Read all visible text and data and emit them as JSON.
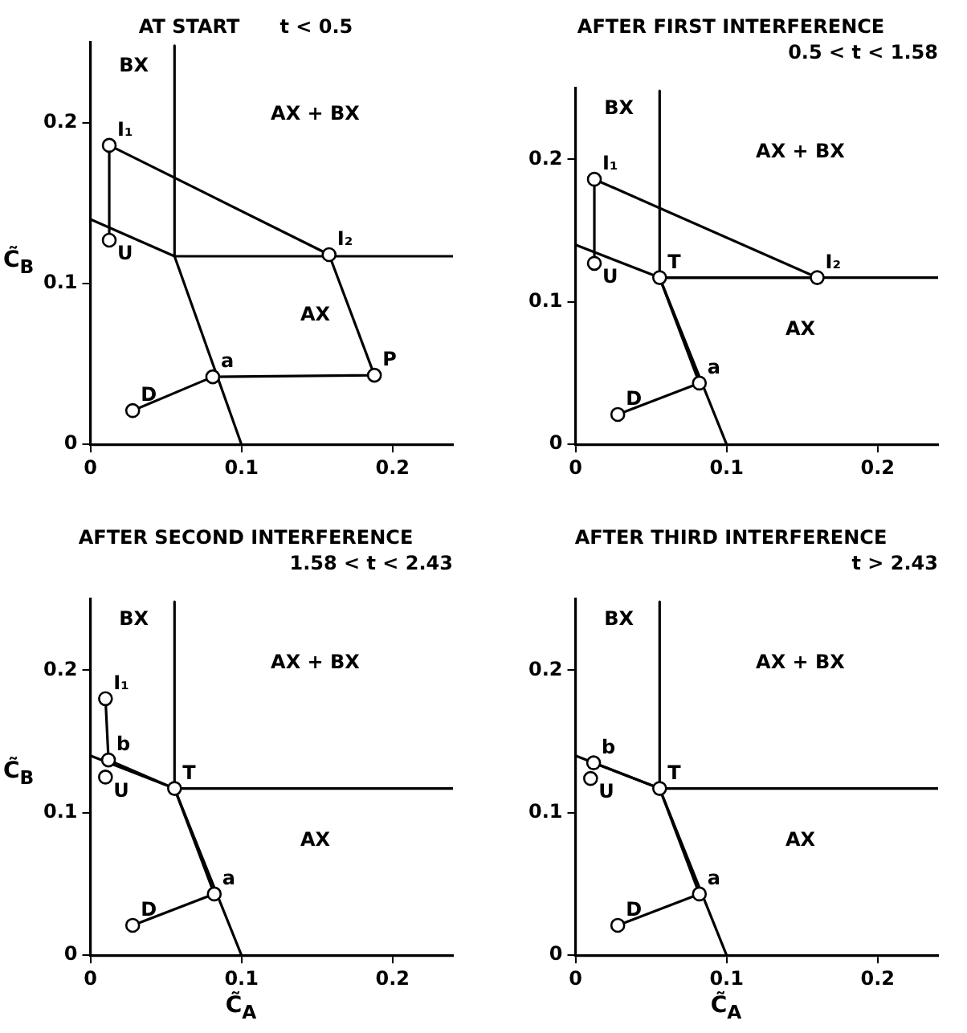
{
  "chart_data": [
    {
      "type": "line",
      "title": "AT START      t < 0.5",
      "ylabel": "C̃$_{B}$",
      "xlim": [
        0,
        0.24
      ],
      "ylim": [
        0,
        0.25
      ],
      "xticks": [
        0,
        0.1,
        0.2
      ],
      "yticks": [
        0,
        0.1,
        0.2
      ],
      "grid": false,
      "legend": false,
      "series": [
        {
          "type": "line",
          "color": "#000000",
          "marker": "none",
          "x": [
            0.0557,
            0.0557,
            0.1
          ],
          "values": [
            0.248,
            0.117,
            0
          ]
        },
        {
          "type": "line",
          "color": "#000000",
          "marker": "none",
          "x": [
            0,
            0.0557,
            0.24
          ],
          "values": [
            0.14,
            0.117,
            0.117
          ]
        },
        {
          "type": "line",
          "color": "#000000",
          "marker": "none",
          "x": [
            0.0125,
            0.0125,
            0.158,
            0.188,
            0.081,
            0.028
          ],
          "values": [
            0.127,
            0.186,
            0.118,
            0.043,
            0.042,
            0.021
          ]
        },
        {
          "type": "scatter",
          "color": "#000000",
          "marker": "circle",
          "x": [
            0.0125,
            0.0125,
            0.158,
            0.188,
            0.081,
            0.028
          ],
          "values": [
            0.186,
            0.127,
            0.118,
            0.043,
            0.042,
            0.021
          ]
        }
      ],
      "annotations": [
        {
          "text": "I₁",
          "x": 0.0125,
          "y": 0.186
        },
        {
          "text": "U",
          "x": 0.0125,
          "y": 0.127
        },
        {
          "text": "I₂",
          "x": 0.158,
          "y": 0.118
        },
        {
          "text": "P",
          "x": 0.188,
          "y": 0.043
        },
        {
          "text": "a",
          "x": 0.081,
          "y": 0.042
        },
        {
          "text": "D",
          "x": 0.028,
          "y": 0.021
        },
        "BX",
        "AX + BX",
        "AX"
      ]
    },
    {
      "type": "line",
      "title": "AFTER FIRST INTERFERENCE",
      "subtitle": "0.5 < t < 1.58",
      "xlim": [
        0,
        0.24
      ],
      "ylim": [
        0,
        0.25
      ],
      "xticks": [
        0,
        0.1,
        0.2
      ],
      "yticks": [
        0,
        0.1,
        0.2
      ],
      "grid": false,
      "legend": false,
      "series": [
        {
          "type": "line",
          "color": "#000000",
          "marker": "none",
          "x": [
            0.0557,
            0.0557,
            0.1
          ],
          "values": [
            0.248,
            0.117,
            0
          ]
        },
        {
          "type": "line",
          "color": "#000000",
          "marker": "none",
          "x": [
            0,
            0.0557,
            0.24
          ],
          "values": [
            0.14,
            0.117,
            0.117
          ]
        },
        {
          "type": "line",
          "color": "#000000",
          "marker": "none",
          "x": [
            0.0125,
            0.0125,
            0.16,
            0.0557,
            0.082,
            0.028
          ],
          "values": [
            0.127,
            0.186,
            0.117,
            0.117,
            0.043,
            0.021
          ]
        },
        {
          "type": "scatter",
          "color": "#000000",
          "marker": "circle",
          "x": [
            0.0125,
            0.0125,
            0.16,
            0.0557,
            0.082,
            0.028
          ],
          "values": [
            0.186,
            0.127,
            0.117,
            0.117,
            0.043,
            0.021
          ]
        }
      ],
      "annotations": [
        {
          "text": "I₁",
          "x": 0.0125,
          "y": 0.186
        },
        {
          "text": "U",
          "x": 0.0125,
          "y": 0.127
        },
        {
          "text": "I₂",
          "x": 0.16,
          "y": 0.117
        },
        {
          "text": "T",
          "x": 0.0557,
          "y": 0.117
        },
        {
          "text": "a",
          "x": 0.082,
          "y": 0.043
        },
        {
          "text": "D",
          "x": 0.028,
          "y": 0.021
        },
        "BX",
        "AX + BX",
        "AX"
      ]
    },
    {
      "type": "line",
      "title": "AFTER SECOND INTERFERENCE",
      "subtitle": "1.58 < t < 2.43",
      "xlabel": "C̃$_{A}$",
      "ylabel": "C̃$_{B}$",
      "xlim": [
        0,
        0.24
      ],
      "ylim": [
        0,
        0.25
      ],
      "xticks": [
        0,
        0.1,
        0.2
      ],
      "yticks": [
        0,
        0.1,
        0.2
      ],
      "grid": false,
      "legend": false,
      "series": [
        {
          "type": "line",
          "color": "#000000",
          "marker": "none",
          "x": [
            0.0557,
            0.0557,
            0.1
          ],
          "values": [
            0.248,
            0.117,
            0
          ]
        },
        {
          "type": "line",
          "color": "#000000",
          "marker": "none",
          "x": [
            0,
            0.0557,
            0.24
          ],
          "values": [
            0.14,
            0.117,
            0.117
          ]
        },
        {
          "type": "line",
          "color": "#000000",
          "marker": "none",
          "x": [
            0.01,
            0.012,
            0.0557,
            0.082,
            0.028
          ],
          "values": [
            0.18,
            0.137,
            0.117,
            0.043,
            0.021
          ]
        },
        {
          "type": "scatter",
          "color": "#000000",
          "marker": "circle",
          "x": [
            0.01,
            0.012,
            0.01,
            0.0557,
            0.082,
            0.028
          ],
          "values": [
            0.18,
            0.137,
            0.125,
            0.117,
            0.043,
            0.021
          ]
        }
      ],
      "annotations": [
        {
          "text": "I₁",
          "x": 0.01,
          "y": 0.18
        },
        {
          "text": "b",
          "x": 0.012,
          "y": 0.137
        },
        {
          "text": "U",
          "x": 0.01,
          "y": 0.125
        },
        {
          "text": "T",
          "x": 0.0557,
          "y": 0.117
        },
        {
          "text": "a",
          "x": 0.082,
          "y": 0.043
        },
        {
          "text": "D",
          "x": 0.028,
          "y": 0.021
        },
        "BX",
        "AX + BX",
        "AX"
      ]
    },
    {
      "type": "line",
      "title": "AFTER THIRD INTERFERENCE",
      "subtitle": "t > 2.43",
      "xlabel": "C̃$_{A}$",
      "xlim": [
        0,
        0.24
      ],
      "ylim": [
        0,
        0.25
      ],
      "xticks": [
        0,
        0.1,
        0.2
      ],
      "yticks": [
        0,
        0.1,
        0.2
      ],
      "grid": false,
      "legend": false,
      "series": [
        {
          "type": "line",
          "color": "#000000",
          "marker": "none",
          "x": [
            0.0557,
            0.0557,
            0.1
          ],
          "values": [
            0.248,
            0.117,
            0
          ]
        },
        {
          "type": "line",
          "color": "#000000",
          "marker": "none",
          "x": [
            0,
            0.0557,
            0.24
          ],
          "values": [
            0.14,
            0.117,
            0.117
          ]
        },
        {
          "type": "line",
          "color": "#000000",
          "marker": "none",
          "x": [
            0.012,
            0.0557,
            0.082,
            0.028
          ],
          "values": [
            0.135,
            0.117,
            0.043,
            0.021
          ]
        },
        {
          "type": "scatter",
          "color": "#000000",
          "marker": "circle",
          "x": [
            0.012,
            0.01,
            0.0557,
            0.082,
            0.028
          ],
          "values": [
            0.135,
            0.124,
            0.117,
            0.043,
            0.021
          ]
        }
      ],
      "annotations": [
        {
          "text": "b",
          "x": 0.012,
          "y": 0.135
        },
        {
          "text": "U",
          "x": 0.01,
          "y": 0.124
        },
        {
          "text": "T",
          "x": 0.0557,
          "y": 0.117
        },
        {
          "text": "a",
          "x": 0.082,
          "y": 0.043
        },
        {
          "text": "D",
          "x": 0.028,
          "y": 0.021
        },
        "BX",
        "AX + BX",
        "AX"
      ]
    }
  ]
}
